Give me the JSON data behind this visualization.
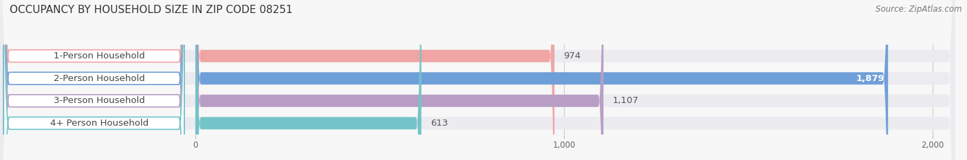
{
  "title": "OCCUPANCY BY HOUSEHOLD SIZE IN ZIP CODE 08251",
  "source": "Source: ZipAtlas.com",
  "categories": [
    "1-Person Household",
    "2-Person Household",
    "3-Person Household",
    "4+ Person Household"
  ],
  "values": [
    974,
    1879,
    1107,
    613
  ],
  "bar_colors": [
    "#f0a4a4",
    "#6f9fd8",
    "#b89ec4",
    "#72c4c8"
  ],
  "bar_bg_color": "#ebebf0",
  "label_bg_color": "#ffffff",
  "xlim": [
    0,
    2000
  ],
  "xticks": [
    0,
    1000,
    2000
  ],
  "xtick_labels": [
    "0",
    "1,000",
    "2,000"
  ],
  "label_fontsize": 9.5,
  "title_fontsize": 11,
  "source_fontsize": 8.5,
  "background_color": "#f7f7f7",
  "value_outside_color": "#555555",
  "value_inside_color": "#ffffff"
}
